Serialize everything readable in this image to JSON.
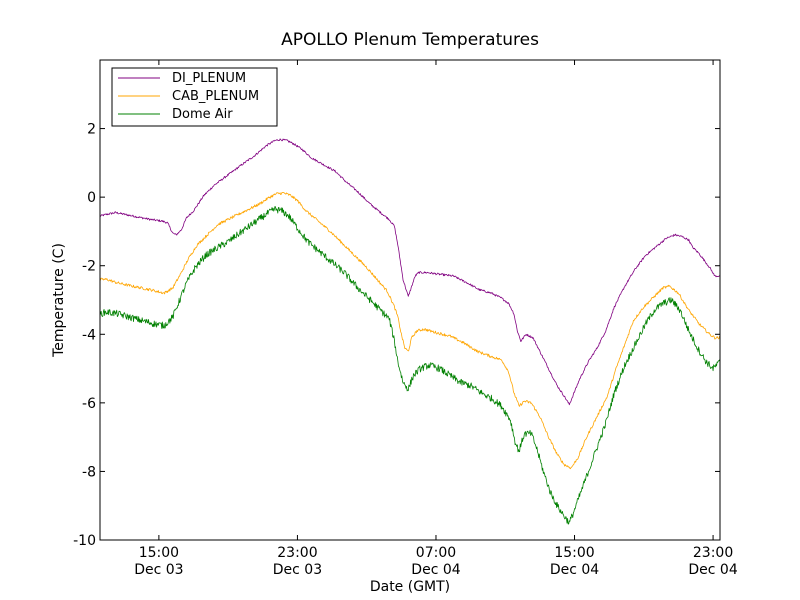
{
  "chart_data": {
    "type": "line",
    "title": "APOLLO Plenum Temperatures",
    "xlabel": "Date (GMT)",
    "ylabel": "Temperature (C)",
    "xlim": [
      11.6,
      47.4
    ],
    "ylim": [
      -10,
      4
    ],
    "x_unit": "hours since 00:00 Dec 03 (GMT)",
    "x_ticks": [
      {
        "x": 15,
        "time": "15:00",
        "date": "Dec 03"
      },
      {
        "x": 23,
        "time": "23:00",
        "date": "Dec 03"
      },
      {
        "x": 31,
        "time": "07:00",
        "date": "Dec 04"
      },
      {
        "x": 39,
        "time": "15:00",
        "date": "Dec 04"
      },
      {
        "x": 47,
        "time": "23:00",
        "date": "Dec 04"
      }
    ],
    "y_ticks": [
      {
        "value": -10,
        "label": "-10"
      },
      {
        "value": -8,
        "label": "-8"
      },
      {
        "value": -6,
        "label": "-6"
      },
      {
        "value": -4,
        "label": "-4"
      },
      {
        "value": -2,
        "label": "-2"
      },
      {
        "value": 0,
        "label": "0"
      },
      {
        "value": 2,
        "label": "2"
      }
    ],
    "grid": false,
    "legend_position": "top-left",
    "series": [
      {
        "name": "DI_PLENUM",
        "color": "#800080",
        "noise": 0.03,
        "points": [
          [
            11.6,
            -0.55
          ],
          [
            12.0,
            -0.5
          ],
          [
            12.5,
            -0.45
          ],
          [
            13.5,
            -0.55
          ],
          [
            14.5,
            -0.65
          ],
          [
            15.2,
            -0.7
          ],
          [
            15.5,
            -0.75
          ],
          [
            15.8,
            -1.05
          ],
          [
            16.0,
            -1.1
          ],
          [
            16.3,
            -0.95
          ],
          [
            16.6,
            -0.6
          ],
          [
            17.0,
            -0.4
          ],
          [
            17.6,
            0.05
          ],
          [
            18.2,
            0.35
          ],
          [
            19.0,
            0.65
          ],
          [
            19.8,
            0.95
          ],
          [
            20.5,
            1.2
          ],
          [
            21.2,
            1.5
          ],
          [
            21.7,
            1.65
          ],
          [
            22.0,
            1.68
          ],
          [
            22.4,
            1.65
          ],
          [
            22.8,
            1.55
          ],
          [
            23.3,
            1.38
          ],
          [
            23.8,
            1.15
          ],
          [
            24.5,
            0.95
          ],
          [
            25.2,
            0.75
          ],
          [
            25.8,
            0.45
          ],
          [
            26.5,
            0.15
          ],
          [
            27.2,
            -0.2
          ],
          [
            27.8,
            -0.45
          ],
          [
            28.3,
            -0.65
          ],
          [
            28.6,
            -0.85
          ],
          [
            28.8,
            -1.4
          ],
          [
            29.1,
            -2.4
          ],
          [
            29.4,
            -2.9
          ],
          [
            29.6,
            -2.6
          ],
          [
            29.8,
            -2.3
          ],
          [
            30.0,
            -2.2
          ],
          [
            30.5,
            -2.2
          ],
          [
            31.2,
            -2.25
          ],
          [
            32.0,
            -2.3
          ],
          [
            32.8,
            -2.5
          ],
          [
            33.5,
            -2.7
          ],
          [
            34.2,
            -2.8
          ],
          [
            34.8,
            -2.95
          ],
          [
            35.2,
            -3.1
          ],
          [
            35.5,
            -3.4
          ],
          [
            35.7,
            -3.9
          ],
          [
            35.9,
            -4.2
          ],
          [
            36.2,
            -4.0
          ],
          [
            36.6,
            -4.1
          ],
          [
            37.0,
            -4.5
          ],
          [
            37.5,
            -5.0
          ],
          [
            38.0,
            -5.5
          ],
          [
            38.4,
            -5.8
          ],
          [
            38.7,
            -6.05
          ],
          [
            38.9,
            -5.8
          ],
          [
            39.3,
            -5.3
          ],
          [
            39.8,
            -4.8
          ],
          [
            40.3,
            -4.4
          ],
          [
            40.8,
            -3.9
          ],
          [
            41.3,
            -3.2
          ],
          [
            41.9,
            -2.6
          ],
          [
            42.5,
            -2.1
          ],
          [
            43.1,
            -1.7
          ],
          [
            43.7,
            -1.45
          ],
          [
            44.3,
            -1.2
          ],
          [
            44.8,
            -1.1
          ],
          [
            45.2,
            -1.15
          ],
          [
            45.6,
            -1.25
          ],
          [
            45.8,
            -1.45
          ],
          [
            46.2,
            -1.65
          ],
          [
            46.8,
            -2.05
          ],
          [
            47.1,
            -2.3
          ],
          [
            47.4,
            -2.3
          ]
        ]
      },
      {
        "name": "CAB_PLENUM",
        "color": "#ffa500",
        "noise": 0.04,
        "points": [
          [
            11.6,
            -2.4
          ],
          [
            12.0,
            -2.4
          ],
          [
            12.6,
            -2.5
          ],
          [
            13.5,
            -2.6
          ],
          [
            14.5,
            -2.7
          ],
          [
            15.3,
            -2.8
          ],
          [
            15.8,
            -2.65
          ],
          [
            16.3,
            -2.2
          ],
          [
            16.7,
            -1.8
          ],
          [
            17.2,
            -1.4
          ],
          [
            17.8,
            -1.1
          ],
          [
            18.4,
            -0.8
          ],
          [
            19.2,
            -0.6
          ],
          [
            20.0,
            -0.4
          ],
          [
            20.8,
            -0.2
          ],
          [
            21.4,
            0.0
          ],
          [
            21.8,
            0.1
          ],
          [
            22.2,
            0.12
          ],
          [
            22.6,
            0.05
          ],
          [
            23.0,
            -0.1
          ],
          [
            23.5,
            -0.4
          ],
          [
            24.2,
            -0.7
          ],
          [
            24.9,
            -1.0
          ],
          [
            25.6,
            -1.35
          ],
          [
            26.3,
            -1.7
          ],
          [
            27.0,
            -2.05
          ],
          [
            27.6,
            -2.4
          ],
          [
            28.2,
            -2.75
          ],
          [
            28.6,
            -3.2
          ],
          [
            28.8,
            -3.5
          ],
          [
            29.0,
            -4.0
          ],
          [
            29.2,
            -4.4
          ],
          [
            29.4,
            -4.5
          ],
          [
            29.6,
            -4.1
          ],
          [
            29.9,
            -3.9
          ],
          [
            30.3,
            -3.85
          ],
          [
            31.0,
            -3.95
          ],
          [
            31.8,
            -4.05
          ],
          [
            32.6,
            -4.25
          ],
          [
            33.4,
            -4.5
          ],
          [
            34.2,
            -4.65
          ],
          [
            34.8,
            -4.75
          ],
          [
            35.2,
            -5.1
          ],
          [
            35.5,
            -5.7
          ],
          [
            35.8,
            -6.1
          ],
          [
            36.1,
            -5.95
          ],
          [
            36.5,
            -6.0
          ],
          [
            37.0,
            -6.4
          ],
          [
            37.5,
            -7.0
          ],
          [
            38.0,
            -7.5
          ],
          [
            38.4,
            -7.8
          ],
          [
            38.8,
            -7.9
          ],
          [
            39.2,
            -7.6
          ],
          [
            39.7,
            -7.0
          ],
          [
            40.3,
            -6.4
          ],
          [
            40.9,
            -5.8
          ],
          [
            41.4,
            -5.0
          ],
          [
            41.9,
            -4.3
          ],
          [
            42.4,
            -3.6
          ],
          [
            43.0,
            -3.2
          ],
          [
            43.6,
            -2.9
          ],
          [
            44.1,
            -2.65
          ],
          [
            44.5,
            -2.6
          ],
          [
            45.0,
            -2.8
          ],
          [
            45.6,
            -3.3
          ],
          [
            46.2,
            -3.7
          ],
          [
            46.8,
            -4.0
          ],
          [
            47.1,
            -4.1
          ],
          [
            47.4,
            -4.1
          ]
        ]
      },
      {
        "name": "Dome Air",
        "color": "#008000",
        "noise": 0.1,
        "points": [
          [
            11.6,
            -3.4
          ],
          [
            12.0,
            -3.35
          ],
          [
            12.6,
            -3.4
          ],
          [
            13.3,
            -3.5
          ],
          [
            14.0,
            -3.6
          ],
          [
            14.8,
            -3.7
          ],
          [
            15.3,
            -3.75
          ],
          [
            15.8,
            -3.5
          ],
          [
            16.2,
            -3.0
          ],
          [
            16.6,
            -2.5
          ],
          [
            17.1,
            -2.05
          ],
          [
            17.7,
            -1.7
          ],
          [
            18.3,
            -1.5
          ],
          [
            19.0,
            -1.3
          ],
          [
            19.8,
            -1.0
          ],
          [
            20.5,
            -0.75
          ],
          [
            21.2,
            -0.5
          ],
          [
            21.7,
            -0.35
          ],
          [
            22.1,
            -0.4
          ],
          [
            22.5,
            -0.55
          ],
          [
            23.0,
            -0.9
          ],
          [
            23.6,
            -1.3
          ],
          [
            24.3,
            -1.6
          ],
          [
            25.0,
            -1.9
          ],
          [
            25.7,
            -2.2
          ],
          [
            26.4,
            -2.6
          ],
          [
            27.2,
            -3.0
          ],
          [
            27.8,
            -3.3
          ],
          [
            28.3,
            -3.55
          ],
          [
            28.6,
            -4.2
          ],
          [
            28.8,
            -4.8
          ],
          [
            29.1,
            -5.4
          ],
          [
            29.4,
            -5.6
          ],
          [
            29.7,
            -5.2
          ],
          [
            30.1,
            -5.0
          ],
          [
            30.6,
            -4.9
          ],
          [
            31.2,
            -5.0
          ],
          [
            31.8,
            -5.2
          ],
          [
            32.4,
            -5.4
          ],
          [
            33.0,
            -5.5
          ],
          [
            33.6,
            -5.7
          ],
          [
            34.3,
            -5.9
          ],
          [
            34.8,
            -6.1
          ],
          [
            35.3,
            -6.5
          ],
          [
            35.6,
            -7.2
          ],
          [
            35.8,
            -7.4
          ],
          [
            36.1,
            -6.9
          ],
          [
            36.5,
            -6.9
          ],
          [
            36.8,
            -7.3
          ],
          [
            37.2,
            -8.0
          ],
          [
            37.6,
            -8.6
          ],
          [
            38.0,
            -9.0
          ],
          [
            38.4,
            -9.3
          ],
          [
            38.7,
            -9.5
          ],
          [
            38.9,
            -9.25
          ],
          [
            39.3,
            -8.7
          ],
          [
            39.8,
            -8.0
          ],
          [
            40.3,
            -7.3
          ],
          [
            40.8,
            -6.6
          ],
          [
            41.3,
            -5.7
          ],
          [
            41.9,
            -4.9
          ],
          [
            42.5,
            -4.3
          ],
          [
            43.1,
            -3.7
          ],
          [
            43.6,
            -3.3
          ],
          [
            44.1,
            -3.1
          ],
          [
            44.6,
            -3.0
          ],
          [
            45.1,
            -3.3
          ],
          [
            45.6,
            -3.9
          ],
          [
            46.1,
            -4.4
          ],
          [
            46.6,
            -4.8
          ],
          [
            47.0,
            -5.0
          ],
          [
            47.4,
            -4.8
          ]
        ]
      }
    ]
  }
}
